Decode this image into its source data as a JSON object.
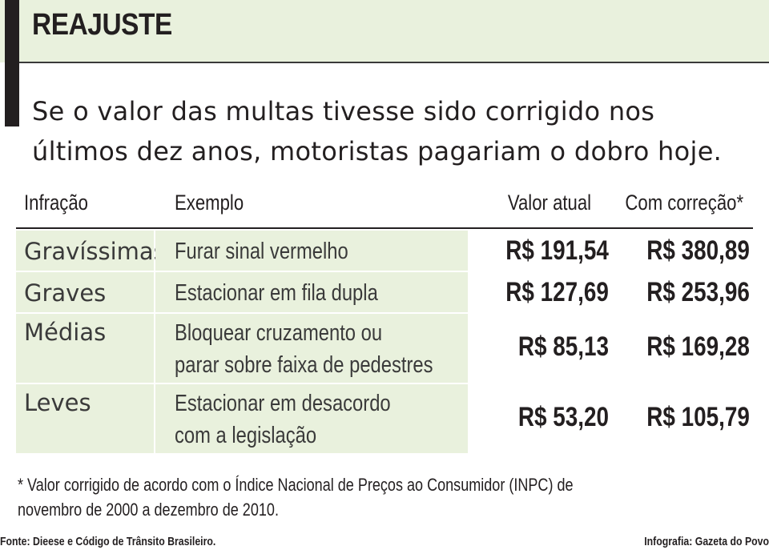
{
  "header": {
    "title": "REAJUSTE",
    "subtitle_lines": [
      "Se o valor das multas tivesse sido corrigido nos",
      "últimos dez anos, motoristas pagariam o dobro hoje."
    ]
  },
  "table": {
    "columns": [
      "Infração",
      "Exemplo",
      "Valor atual",
      "Com correção*"
    ],
    "rows": [
      {
        "infracao": "Gravíssimas",
        "exemplo": [
          "Furar sinal vermelho"
        ],
        "valor_atual": "R$ 191,54",
        "com_correcao": "R$ 380,89"
      },
      {
        "infracao": "Graves",
        "exemplo": [
          "Estacionar em fila dupla"
        ],
        "valor_atual": "R$ 127,69",
        "com_correcao": "R$ 253,96"
      },
      {
        "infracao": "Médias",
        "exemplo": [
          "Bloquear cruzamento ou",
          "parar sobre faixa de pedestres"
        ],
        "valor_atual": "R$ 85,13",
        "com_correcao": "R$ 169,28"
      },
      {
        "infracao": "Leves",
        "exemplo": [
          "Estacionar em desacordo",
          "com a legislação"
        ],
        "valor_atual": "R$ 53,20",
        "com_correcao": "R$ 105,79"
      }
    ]
  },
  "footnote_lines": [
    "* Valor corrigido de acordo com o Índice Nacional de Preços ao Consumidor (INPC) de",
    "novembro de 2000 a dezembro de 2010."
  ],
  "source": "Fonte: Dieese e Código de Trânsito Brasileiro.",
  "credit": "Infografia: Gazeta do Povo",
  "colors": {
    "accent_band": "#e9f1dd",
    "text": "#231f20"
  }
}
